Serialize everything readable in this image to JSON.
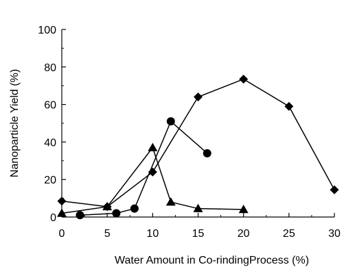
{
  "chart_data": {
    "type": "line",
    "title": "",
    "xlabel": "Water Amount in Co-rindingProcess (%)",
    "ylabel": "Nanoparticle Yield (%)",
    "xlim": [
      0,
      30
    ],
    "ylim": [
      0,
      100
    ],
    "x_ticks": [
      0,
      5,
      10,
      15,
      20,
      25,
      30
    ],
    "y_ticks": [
      0,
      20,
      40,
      60,
      80,
      100
    ],
    "grid": false,
    "legend": "none",
    "series": [
      {
        "marker": "diamond",
        "color": "#000000",
        "points": [
          [
            0,
            8.5
          ],
          [
            5,
            5.5
          ],
          [
            10,
            24
          ],
          [
            15,
            64
          ],
          [
            20,
            73.5
          ],
          [
            25,
            59
          ],
          [
            30,
            14.5
          ]
        ]
      },
      {
        "marker": "circle",
        "color": "#000000",
        "points": [
          [
            2,
            1
          ],
          [
            6,
            2
          ],
          [
            8,
            4.5
          ],
          [
            12,
            51
          ],
          [
            16,
            34
          ]
        ]
      },
      {
        "marker": "triangle",
        "color": "#000000",
        "points": [
          [
            0,
            2
          ],
          [
            5,
            5.5
          ],
          [
            10,
            37
          ],
          [
            12,
            8
          ],
          [
            15,
            4.5
          ],
          [
            20,
            4
          ]
        ]
      }
    ]
  }
}
